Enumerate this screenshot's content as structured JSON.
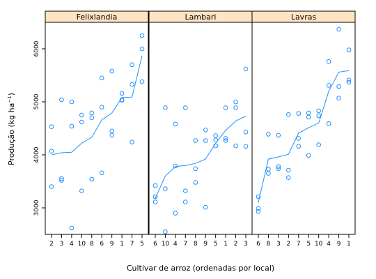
{
  "chart_data": {
    "type": "scatter",
    "xlabel": "Cultivar de arroz (ordenadas por local)",
    "ylabel": {
      "main": "Produção (kg ha",
      "sup": "−1",
      "close": ")"
    },
    "ylim": [
      2500,
      6500
    ],
    "yticks": [
      "3000",
      "4000",
      "5000",
      "6000"
    ],
    "grid": false,
    "colors": {
      "points": "#1e90ff",
      "strip": "#ffe4c4",
      "frame": "#000000"
    },
    "panels": [
      {
        "name": "Felixlandia",
        "categories": [
          "2",
          "3",
          "4",
          "10",
          "8",
          "6",
          "9",
          "1",
          "7",
          "5"
        ],
        "points": [
          [
            1,
            3400
          ],
          [
            1,
            4070
          ],
          [
            1,
            4530
          ],
          [
            2,
            3520
          ],
          [
            2,
            3550
          ],
          [
            2,
            5040
          ],
          [
            3,
            2620
          ],
          [
            3,
            4540
          ],
          [
            3,
            5000
          ],
          [
            4,
            3320
          ],
          [
            4,
            4620
          ],
          [
            4,
            4750
          ],
          [
            5,
            3540
          ],
          [
            5,
            4700
          ],
          [
            5,
            4790
          ],
          [
            6,
            3660
          ],
          [
            6,
            4900
          ],
          [
            6,
            5450
          ],
          [
            7,
            4370
          ],
          [
            7,
            4450
          ],
          [
            7,
            5580
          ],
          [
            8,
            5030
          ],
          [
            8,
            5040
          ],
          [
            8,
            5160
          ],
          [
            9,
            4240
          ],
          [
            9,
            5330
          ],
          [
            9,
            5700
          ],
          [
            10,
            5380
          ],
          [
            10,
            6000
          ],
          [
            10,
            6250
          ]
        ],
        "curve": [
          [
            1,
            4000
          ],
          [
            2,
            4040
          ],
          [
            3,
            4050
          ],
          [
            4,
            4220
          ],
          [
            5,
            4330
          ],
          [
            6,
            4660
          ],
          [
            7,
            4790
          ],
          [
            8,
            5080
          ],
          [
            9,
            5090
          ],
          [
            10,
            5870
          ]
        ]
      },
      {
        "name": "Lambari",
        "categories": [
          "6",
          "10",
          "4",
          "7",
          "8",
          "9",
          "5",
          "1",
          "2",
          "3"
        ],
        "points": [
          [
            1,
            3110
          ],
          [
            1,
            3210
          ],
          [
            1,
            3420
          ],
          [
            2,
            2550
          ],
          [
            2,
            3360
          ],
          [
            2,
            4890
          ],
          [
            3,
            2900
          ],
          [
            3,
            3790
          ],
          [
            3,
            4580
          ],
          [
            4,
            3110
          ],
          [
            4,
            3320
          ],
          [
            4,
            4890
          ],
          [
            5,
            3480
          ],
          [
            5,
            3740
          ],
          [
            5,
            4270
          ],
          [
            6,
            3010
          ],
          [
            6,
            4270
          ],
          [
            6,
            4470
          ],
          [
            7,
            4170
          ],
          [
            7,
            4280
          ],
          [
            7,
            4360
          ],
          [
            8,
            4270
          ],
          [
            8,
            4310
          ],
          [
            8,
            4890
          ],
          [
            9,
            4170
          ],
          [
            9,
            4890
          ],
          [
            9,
            5000
          ],
          [
            10,
            4160
          ],
          [
            10,
            4430
          ],
          [
            10,
            5620
          ]
        ],
        "curve": [
          [
            1,
            3180
          ],
          [
            2,
            3600
          ],
          [
            3,
            3780
          ],
          [
            4,
            3800
          ],
          [
            5,
            3840
          ],
          [
            6,
            3920
          ],
          [
            7,
            4220
          ],
          [
            8,
            4460
          ],
          [
            9,
            4640
          ],
          [
            10,
            4730
          ]
        ]
      },
      {
        "name": "Lavras",
        "categories": [
          "6",
          "8",
          "3",
          "2",
          "7",
          "5",
          "10",
          "4",
          "9",
          "1"
        ],
        "points": [
          [
            1,
            2930
          ],
          [
            1,
            2990
          ],
          [
            1,
            3210
          ],
          [
            2,
            3650
          ],
          [
            2,
            3730
          ],
          [
            2,
            4390
          ],
          [
            3,
            3740
          ],
          [
            3,
            3780
          ],
          [
            3,
            4370
          ],
          [
            4,
            3570
          ],
          [
            4,
            3710
          ],
          [
            4,
            4760
          ],
          [
            5,
            4160
          ],
          [
            5,
            4310
          ],
          [
            5,
            4780
          ],
          [
            6,
            3990
          ],
          [
            6,
            4710
          ],
          [
            6,
            4790
          ],
          [
            7,
            4190
          ],
          [
            7,
            4740
          ],
          [
            7,
            4830
          ],
          [
            8,
            4590
          ],
          [
            8,
            5310
          ],
          [
            8,
            5760
          ],
          [
            9,
            5070
          ],
          [
            9,
            5290
          ],
          [
            9,
            6370
          ],
          [
            10,
            5370
          ],
          [
            10,
            5410
          ],
          [
            10,
            5980
          ]
        ],
        "curve": [
          [
            1,
            3100
          ],
          [
            2,
            3920
          ],
          [
            3,
            3960
          ],
          [
            4,
            4010
          ],
          [
            5,
            4410
          ],
          [
            6,
            4510
          ],
          [
            7,
            4600
          ],
          [
            8,
            5200
          ],
          [
            9,
            5560
          ],
          [
            10,
            5590
          ]
        ]
      }
    ]
  }
}
